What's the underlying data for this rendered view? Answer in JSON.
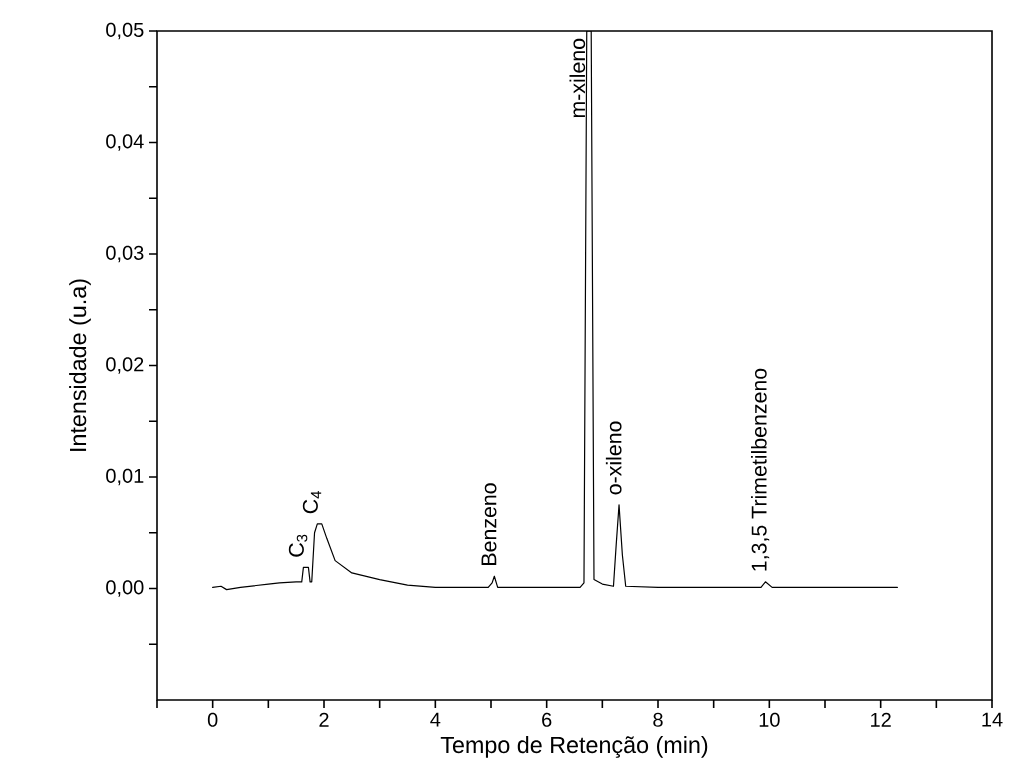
{
  "chart_data": {
    "type": "line",
    "xlabel": "Tempo de Retenção (min)",
    "ylabel": "Intensidade (u.a)",
    "xlim": [
      -1,
      14
    ],
    "ylim": [
      -0.01,
      0.05
    ],
    "xticks": [
      {
        "value": -1,
        "label": null
      },
      0,
      {
        "value": 1,
        "label": null
      },
      2,
      {
        "value": 3,
        "label": null
      },
      4,
      {
        "value": 5,
        "label": null
      },
      6,
      {
        "value": 7,
        "label": null
      },
      8,
      {
        "value": 9,
        "label": null
      },
      10,
      {
        "value": 11,
        "label": null
      },
      12,
      {
        "value": 13,
        "label": null
      },
      14
    ],
    "yticks": [
      {
        "value": -0.005,
        "label": null
      },
      {
        "value": 0,
        "label": "0,00"
      },
      {
        "value": 0.005,
        "label": null
      },
      {
        "value": 0.01,
        "label": "0,01"
      },
      {
        "value": 0.015,
        "label": null
      },
      {
        "value": 0.02,
        "label": "0,02"
      },
      {
        "value": 0.025,
        "label": null
      },
      {
        "value": 0.03,
        "label": "0,03"
      },
      {
        "value": 0.035,
        "label": null
      },
      {
        "value": 0.04,
        "label": "0,04"
      },
      {
        "value": 0.045,
        "label": null
      },
      {
        "value": 0.05,
        "label": "0,05"
      }
    ],
    "grid": false,
    "marker": "none",
    "line_style": "solid",
    "series": [
      {
        "color": "#000000",
        "x": [
          0,
          0.15,
          0.25,
          0.5,
          1.0,
          1.2,
          1.5,
          1.6,
          1.63,
          1.72,
          1.75,
          1.78,
          1.83,
          1.88,
          1.96,
          2.05,
          2.2,
          2.5,
          3.0,
          3.5,
          4.0,
          4.95,
          5.02,
          5.06,
          5.12,
          6.0,
          6.6,
          6.67,
          6.72,
          6.8,
          6.85,
          7.0,
          7.2,
          7.25,
          7.3,
          7.36,
          7.42,
          8.0,
          9.0,
          9.85,
          9.93,
          10.05,
          11.0,
          12.3
        ],
        "values": [
          0.0001,
          0.0002,
          -0.0001,
          0.0001,
          0.0004,
          0.0005,
          0.0006,
          0.0006,
          0.0019,
          0.0019,
          0.0006,
          0.0006,
          0.005,
          0.0058,
          0.0058,
          0.0045,
          0.0025,
          0.0014,
          0.0008,
          0.0003,
          0.0001,
          0.0001,
          0.0005,
          0.0011,
          0.0001,
          0.0001,
          0.0001,
          0.0005,
          0.05,
          0.05,
          0.0008,
          0.0004,
          0.0002,
          0.004,
          0.0075,
          0.003,
          0.0002,
          0.0001,
          0.0001,
          0.0001,
          0.0006,
          0.0001,
          0.0001,
          0.0001
        ]
      }
    ],
    "annotations": [
      {
        "text": "C$_{3}$",
        "x": 1.63,
        "y": 0.0019
      },
      {
        "text": "C$_{4}$",
        "x": 1.88,
        "y": 0.0058
      },
      {
        "text": "Benzeno",
        "x": 5.06,
        "y": 0.0011
      },
      {
        "text": "m-xileno",
        "x": 6.72,
        "y": 0.05
      },
      {
        "text": "o-xileno",
        "x": 7.3,
        "y": 0.0075
      },
      {
        "text": "1,3,5 Trimetilbenzeno",
        "x": 9.93,
        "y": 0.0006
      }
    ]
  }
}
